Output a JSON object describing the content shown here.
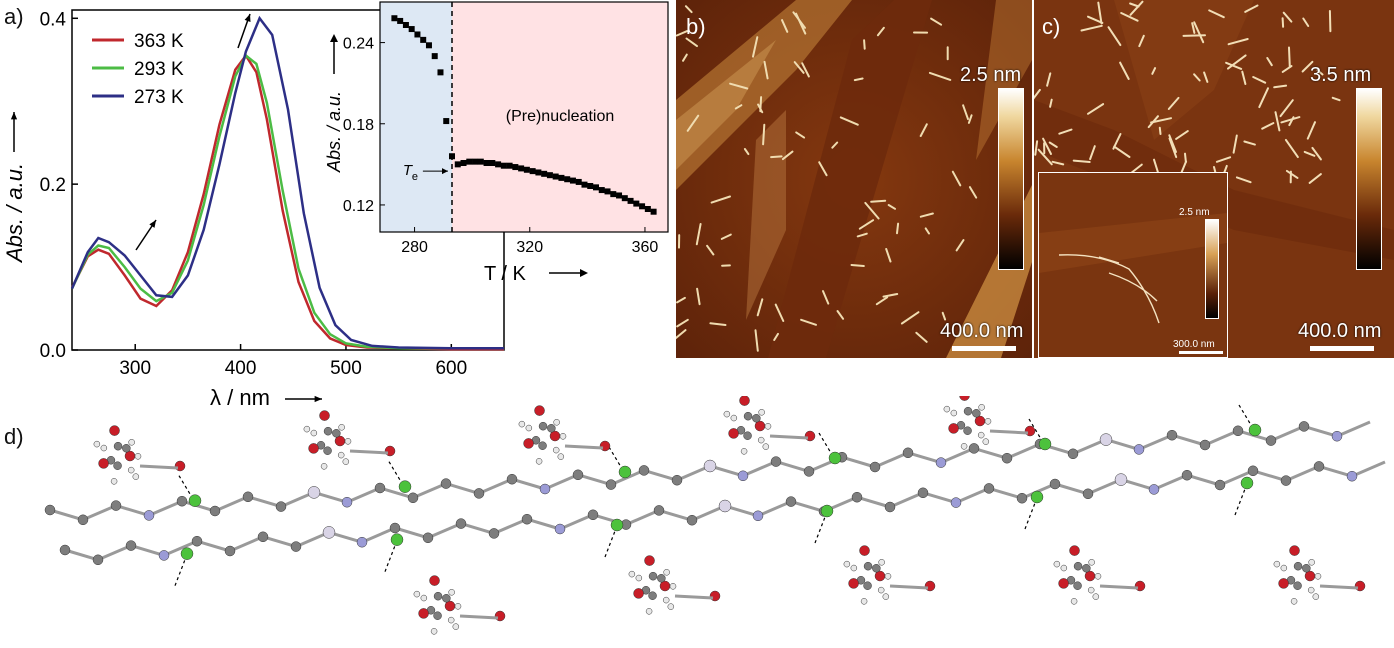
{
  "panel_labels": {
    "a": "a)",
    "b": "b)",
    "c": "c)",
    "d": "d)"
  },
  "chart_data": [
    {
      "type": "line",
      "panel": "a",
      "xlabel": "λ / nm",
      "ylabel": "Abs. / a.u.",
      "xlim": [
        240,
        650
      ],
      "ylim": [
        0.0,
        0.41
      ],
      "xticks": [
        300,
        400,
        500,
        600
      ],
      "yticks": [
        0.0,
        0.2,
        0.4
      ],
      "ytick_labels": [
        "0.0",
        "0.2",
        "0.4"
      ],
      "legend_position": "top-left",
      "series": [
        {
          "name": "363 K",
          "color": "#c0282d",
          "x": [
            240,
            255,
            265,
            275,
            290,
            305,
            320,
            335,
            350,
            365,
            380,
            395,
            405,
            415,
            425,
            440,
            455,
            470,
            485,
            500,
            520,
            550,
            600,
            650
          ],
          "y": [
            0.075,
            0.113,
            0.121,
            0.116,
            0.09,
            0.062,
            0.053,
            0.072,
            0.118,
            0.188,
            0.272,
            0.338,
            0.355,
            0.335,
            0.278,
            0.168,
            0.082,
            0.035,
            0.014,
            0.006,
            0.003,
            0.002,
            0.001,
            0.001
          ]
        },
        {
          "name": "293 K",
          "color": "#4cbc45",
          "x": [
            240,
            255,
            265,
            275,
            290,
            305,
            320,
            335,
            350,
            365,
            380,
            395,
            405,
            415,
            425,
            440,
            455,
            470,
            485,
            500,
            520,
            550,
            600,
            650
          ],
          "y": [
            0.074,
            0.115,
            0.126,
            0.123,
            0.1,
            0.074,
            0.059,
            0.069,
            0.108,
            0.175,
            0.258,
            0.33,
            0.355,
            0.345,
            0.298,
            0.192,
            0.098,
            0.045,
            0.019,
            0.008,
            0.004,
            0.002,
            0.002,
            0.002
          ]
        },
        {
          "name": "273 K",
          "color": "#2d2f86",
          "x": [
            240,
            255,
            265,
            275,
            290,
            305,
            320,
            335,
            350,
            365,
            380,
            395,
            405,
            418,
            430,
            445,
            460,
            475,
            490,
            505,
            525,
            550,
            600,
            650
          ],
          "y": [
            0.074,
            0.118,
            0.135,
            0.13,
            0.114,
            0.09,
            0.066,
            0.064,
            0.09,
            0.145,
            0.224,
            0.31,
            0.36,
            0.4,
            0.38,
            0.29,
            0.165,
            0.075,
            0.03,
            0.012,
            0.005,
            0.003,
            0.002,
            0.002
          ]
        }
      ]
    },
    {
      "type": "scatter",
      "panel": "a-inset",
      "xlabel": "T / K",
      "ylabel": "Abs. / a.u.",
      "xlim": [
        268,
        368
      ],
      "ylim": [
        0.1,
        0.27
      ],
      "xticks": [
        280,
        320,
        360
      ],
      "yticks": [
        0.12,
        0.18,
        0.24
      ],
      "ytick_labels": [
        "0.12",
        "0.18",
        "0.24"
      ],
      "annotation_region": "(Pre)nucleation",
      "te_label": "T",
      "te_sub": "e",
      "te_value": 293,
      "x": [
        273,
        275,
        277,
        279,
        281,
        283,
        285,
        287,
        289,
        291,
        293,
        295,
        297,
        299,
        301,
        303,
        305,
        307,
        309,
        311,
        313,
        315,
        317,
        319,
        321,
        323,
        325,
        327,
        329,
        331,
        333,
        335,
        337,
        339,
        341,
        343,
        345,
        347,
        349,
        351,
        353,
        355,
        357,
        359,
        361,
        363
      ],
      "y": [
        0.258,
        0.256,
        0.253,
        0.25,
        0.246,
        0.242,
        0.238,
        0.23,
        0.218,
        0.182,
        0.156,
        0.15,
        0.151,
        0.152,
        0.152,
        0.152,
        0.151,
        0.151,
        0.15,
        0.149,
        0.149,
        0.148,
        0.147,
        0.146,
        0.145,
        0.144,
        0.143,
        0.142,
        0.141,
        0.14,
        0.139,
        0.138,
        0.137,
        0.135,
        0.134,
        0.133,
        0.131,
        0.13,
        0.128,
        0.127,
        0.125,
        0.123,
        0.121,
        0.119,
        0.117,
        0.115
      ]
    }
  ],
  "afm_b": {
    "colorbar_label": "2.5 nm",
    "scalebar_label": "400.0 nm"
  },
  "afm_c": {
    "colorbar_label": "3.5 nm",
    "scalebar_label": "400.0 nm",
    "inset_colorbar_label": "2.5 nm",
    "inset_scalebar_label": "300.0 nm"
  },
  "colors": {
    "afm_dark": "#3a1406",
    "afm_mid": "#8a3a0e",
    "afm_light": "#e0b36a",
    "inset_bg": "#f3e6ea",
    "inset_region": "#ffe2e4",
    "blue_region": "#dde8f4",
    "atom_c": "#7d7d7d",
    "atom_n": "#9b9bd6",
    "atom_o": "#c81e28",
    "atom_cl": "#4cc23c",
    "atom_pt": "#d9d4e6",
    "atom_h": "#e8e8e8"
  }
}
